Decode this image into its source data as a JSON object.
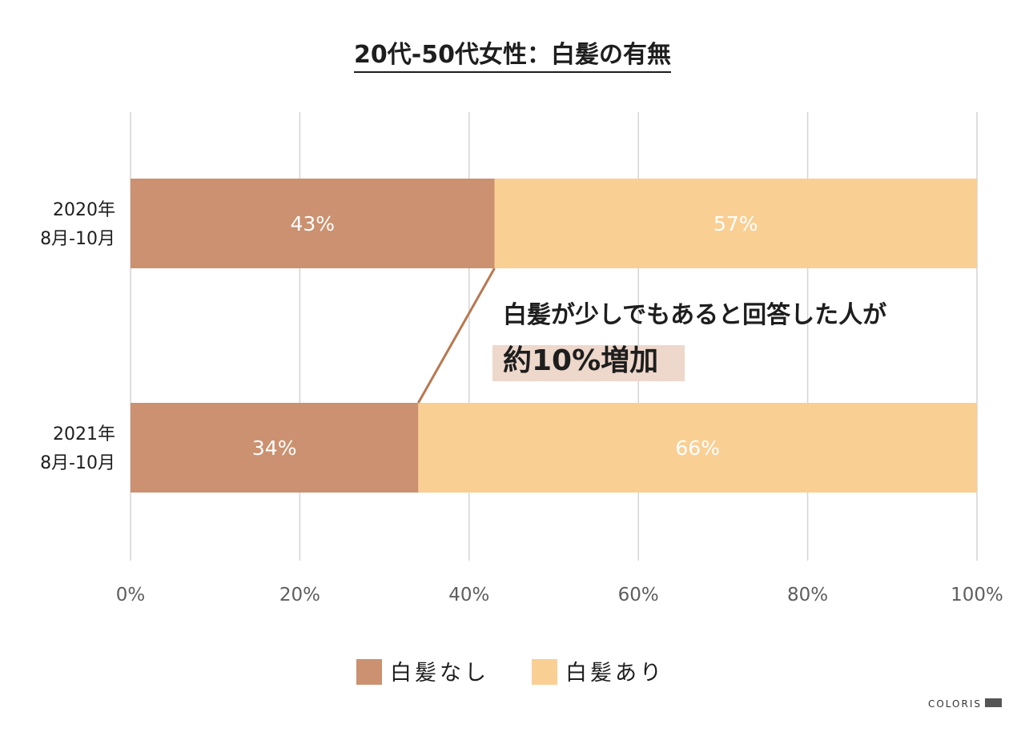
{
  "chart_data": {
    "type": "bar",
    "orientation": "horizontal",
    "stacked": true,
    "title": "20代-50代女性：白髪の有無",
    "categories": [
      [
        "2020年",
        "8月-10月"
      ],
      [
        "2021年",
        "8月-10月"
      ]
    ],
    "series": [
      {
        "name": "白髪なし",
        "values": [
          43,
          34
        ],
        "labels": [
          "43%",
          "34%"
        ],
        "color": "#cb9170"
      },
      {
        "name": "白髪あり",
        "values": [
          57,
          66
        ],
        "labels": [
          "57%",
          "66%"
        ],
        "color": "#f9cf94"
      }
    ],
    "xlim": [
      0,
      100
    ],
    "xticks": [
      "0%",
      "20%",
      "40%",
      "60%",
      "80%",
      "100%"
    ],
    "grid": true,
    "legend_position": "bottom",
    "annotation": {
      "line1": "白髪が少しでもあると回答した人が",
      "line2": "約10%増加",
      "connector_color": "#b8784f",
      "highlight_color": "#eed8cb"
    }
  },
  "brand": {
    "text": "COLORIS",
    "color": "#555555"
  }
}
